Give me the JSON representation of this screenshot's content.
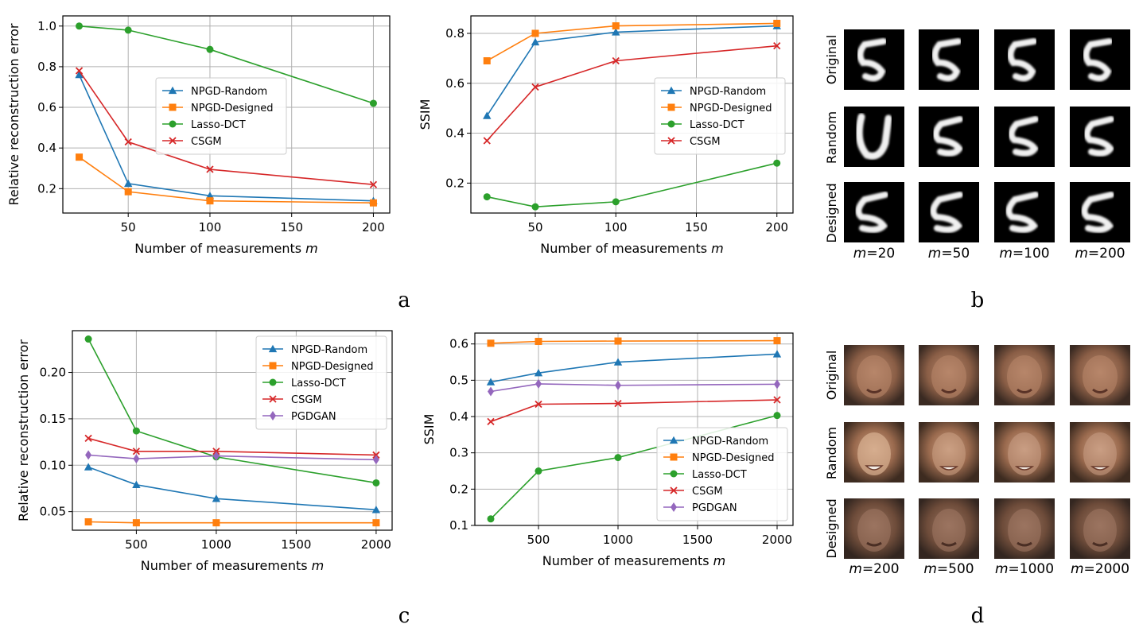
{
  "colors": {
    "NPGD-Random": "#1f77b4",
    "NPGD-Designed": "#ff7f0e",
    "Lasso-DCT": "#2ca02c",
    "CSGM": "#d62728",
    "PGDGAN": "#9467bd"
  },
  "panels": {
    "a": "a",
    "b": "b",
    "c": "c",
    "d": "d"
  },
  "grid_b": {
    "rows": [
      "Original",
      "Random",
      "Designed"
    ],
    "cols": [
      "m=20",
      "m=50",
      "m=100",
      "m=200"
    ],
    "col_var": "m",
    "col_vals": [
      "20",
      "50",
      "100",
      "200"
    ]
  },
  "grid_d": {
    "rows": [
      "Original",
      "Random",
      "Designed"
    ],
    "cols": [
      "m=200",
      "m=500",
      "m=1000",
      "m=2000"
    ],
    "col_var": "m",
    "col_vals": [
      "200",
      "500",
      "1000",
      "2000"
    ]
  },
  "chart_data": [
    {
      "id": "a1",
      "type": "line",
      "xlabel": "Number of measurements m",
      "ylabel": "Relative reconstruction error",
      "xlim": [
        10,
        210
      ],
      "ylim": [
        0.08,
        1.05
      ],
      "xticks": [
        50,
        100,
        150,
        200
      ],
      "xtick_labels": [
        "50",
        "100",
        "150",
        "200"
      ],
      "yticks": [
        0.2,
        0.4,
        0.6,
        0.8,
        1.0
      ],
      "ytick_labels": [
        "0.2",
        "0.4",
        "0.6",
        "0.8",
        "1.0"
      ],
      "legend": "center-right",
      "grid": true,
      "x": [
        20,
        50,
        100,
        200
      ],
      "series": [
        {
          "name": "NPGD-Random",
          "marker": "triangle",
          "values": [
            0.76,
            0.225,
            0.165,
            0.14
          ]
        },
        {
          "name": "NPGD-Designed",
          "marker": "square",
          "values": [
            0.355,
            0.185,
            0.14,
            0.13
          ]
        },
        {
          "name": "Lasso-DCT",
          "marker": "circle",
          "values": [
            1.0,
            0.98,
            0.885,
            0.62
          ]
        },
        {
          "name": "CSGM",
          "marker": "x",
          "values": [
            0.78,
            0.43,
            0.295,
            0.22
          ]
        }
      ]
    },
    {
      "id": "a2",
      "type": "line",
      "xlabel": "Number of measurements m",
      "ylabel": "SSIM",
      "xlim": [
        10,
        210
      ],
      "ylim": [
        0.08,
        0.87
      ],
      "xticks": [
        50,
        100,
        150,
        200
      ],
      "xtick_labels": [
        "50",
        "100",
        "150",
        "200"
      ],
      "yticks": [
        0.2,
        0.4,
        0.6,
        0.8
      ],
      "ytick_labels": [
        "0.2",
        "0.4",
        "0.6",
        "0.8"
      ],
      "legend": "center-right",
      "grid": true,
      "x": [
        20,
        50,
        100,
        200
      ],
      "series": [
        {
          "name": "NPGD-Random",
          "marker": "triangle",
          "values": [
            0.47,
            0.765,
            0.805,
            0.83
          ]
        },
        {
          "name": "NPGD-Designed",
          "marker": "square",
          "values": [
            0.69,
            0.8,
            0.83,
            0.84
          ]
        },
        {
          "name": "Lasso-DCT",
          "marker": "circle",
          "values": [
            0.145,
            0.105,
            0.125,
            0.28
          ]
        },
        {
          "name": "CSGM",
          "marker": "x",
          "values": [
            0.37,
            0.585,
            0.69,
            0.75
          ]
        }
      ]
    },
    {
      "id": "c1",
      "type": "line",
      "xlabel": "Number of measurements m",
      "ylabel": "Relative reconstruction error",
      "xlim": [
        100,
        2100
      ],
      "ylim": [
        0.03,
        0.245
      ],
      "xticks": [
        500,
        1000,
        1500,
        2000
      ],
      "xtick_labels": [
        "500",
        "1000",
        "1500",
        "2000"
      ],
      "yticks": [
        0.05,
        0.1,
        0.15,
        0.2
      ],
      "ytick_labels": [
        "0.05",
        "0.10",
        "0.15",
        "0.20"
      ],
      "legend": "top-right",
      "grid": true,
      "x": [
        200,
        500,
        1000,
        2000
      ],
      "series": [
        {
          "name": "NPGD-Random",
          "marker": "triangle",
          "values": [
            0.098,
            0.079,
            0.064,
            0.052
          ]
        },
        {
          "name": "NPGD-Designed",
          "marker": "square",
          "values": [
            0.039,
            0.038,
            0.038,
            0.038
          ]
        },
        {
          "name": "Lasso-DCT",
          "marker": "circle",
          "values": [
            0.236,
            0.137,
            0.109,
            0.081
          ]
        },
        {
          "name": "CSGM",
          "marker": "x",
          "values": [
            0.129,
            0.115,
            0.115,
            0.111
          ]
        },
        {
          "name": "PGDGAN",
          "marker": "diamond",
          "values": [
            0.111,
            0.107,
            0.11,
            0.106
          ]
        }
      ]
    },
    {
      "id": "c2",
      "type": "line",
      "xlabel": "Number of measurements m",
      "ylabel": "SSIM",
      "xlim": [
        100,
        2100
      ],
      "ylim": [
        0.1,
        0.63
      ],
      "xticks": [
        500,
        1000,
        1500,
        2000
      ],
      "xtick_labels": [
        "500",
        "1000",
        "1500",
        "2000"
      ],
      "yticks": [
        0.1,
        0.2,
        0.3,
        0.4,
        0.5,
        0.6
      ],
      "ytick_labels": [
        "0.1",
        "0.2",
        "0.3",
        "0.4",
        "0.5",
        "0.6"
      ],
      "legend": "bottom-right",
      "grid": true,
      "x": [
        200,
        500,
        1000,
        2000
      ],
      "series": [
        {
          "name": "NPGD-Random",
          "marker": "triangle",
          "values": [
            0.495,
            0.52,
            0.55,
            0.572
          ]
        },
        {
          "name": "NPGD-Designed",
          "marker": "square",
          "values": [
            0.602,
            0.607,
            0.608,
            0.609
          ]
        },
        {
          "name": "Lasso-DCT",
          "marker": "circle",
          "values": [
            0.118,
            0.25,
            0.287,
            0.403
          ]
        },
        {
          "name": "CSGM",
          "marker": "x",
          "values": [
            0.386,
            0.434,
            0.436,
            0.446
          ]
        },
        {
          "name": "PGDGAN",
          "marker": "diamond",
          "values": [
            0.469,
            0.49,
            0.486,
            0.489
          ]
        }
      ]
    }
  ]
}
